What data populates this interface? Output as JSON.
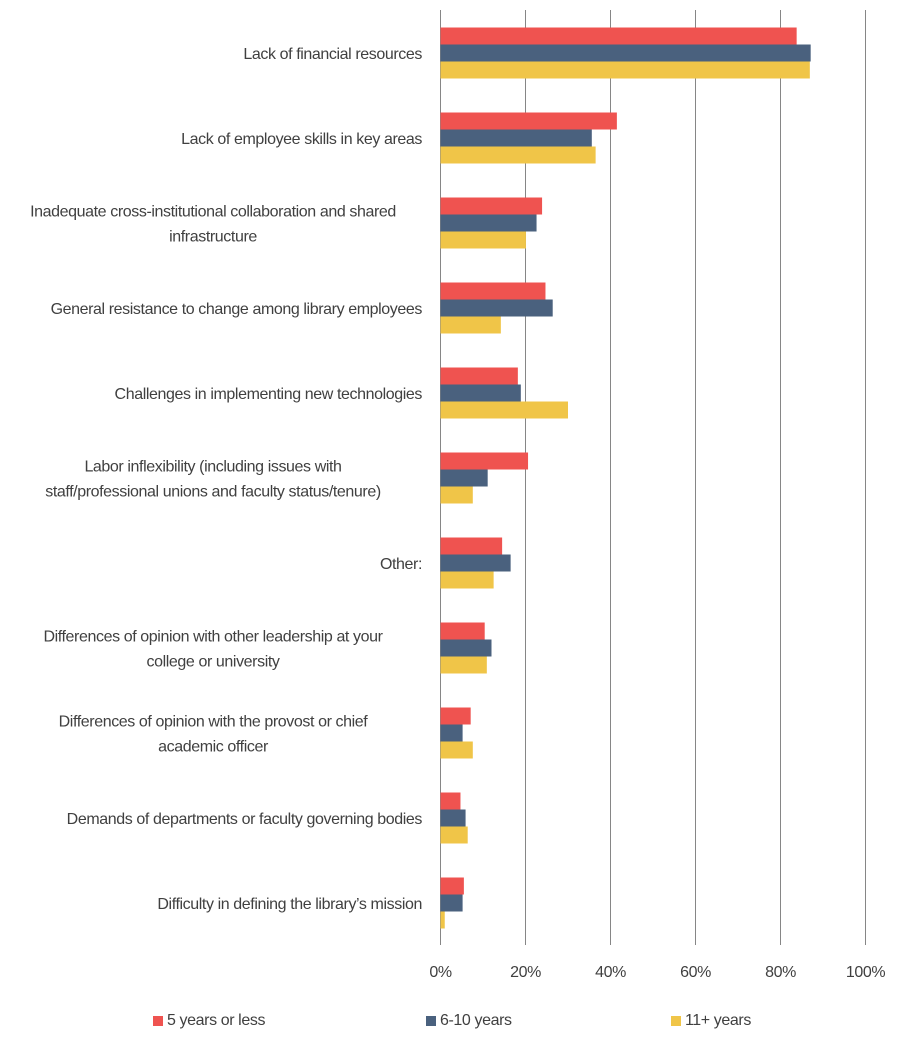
{
  "chart_data": {
    "type": "bar",
    "orientation": "horizontal",
    "title": "",
    "xlabel": "",
    "ylabel": "",
    "xlim": [
      0,
      100
    ],
    "x_ticks": [
      "0%",
      "20%",
      "40%",
      "60%",
      "80%",
      "100%"
    ],
    "grid": true,
    "legend_position": "bottom",
    "categories": [
      [
        "Lack of financial resources"
      ],
      [
        "Lack of employee skills in key areas"
      ],
      [
        "Inadequate cross-institutional collaboration and shared",
        "infrastructure"
      ],
      [
        "General resistance to change among library employees"
      ],
      [
        "Challenges in implementing new technologies"
      ],
      [
        "Labor inflexibility (including issues with",
        "staff/professional unions and faculty status/tenure)"
      ],
      [
        "Other:"
      ],
      [
        "Differences of opinion with other leadership at your",
        "college or university"
      ],
      [
        "Differences of opinion with the provost or chief",
        "academic officer"
      ],
      [
        "Demands of departments or faculty governing bodies"
      ],
      [
        "Difficulty in defining the library’s mission"
      ]
    ],
    "series": [
      {
        "name": "5 years or less",
        "color": "#EF5350",
        "values": [
          83.8,
          41.5,
          23.9,
          24.7,
          18.2,
          20.6,
          14.5,
          10.4,
          7.1,
          4.7,
          5.5
        ]
      },
      {
        "name": "6-10 years",
        "color": "#4A617E",
        "values": [
          87.1,
          35.6,
          22.6,
          26.4,
          18.9,
          11.1,
          16.5,
          12.0,
          5.2,
          5.9,
          5.2
        ]
      },
      {
        "name": "11+ years",
        "color": "#F0C548",
        "values": [
          86.9,
          36.5,
          20.1,
          14.2,
          30.0,
          7.6,
          12.5,
          10.9,
          7.6,
          6.4,
          1.0
        ]
      }
    ]
  }
}
